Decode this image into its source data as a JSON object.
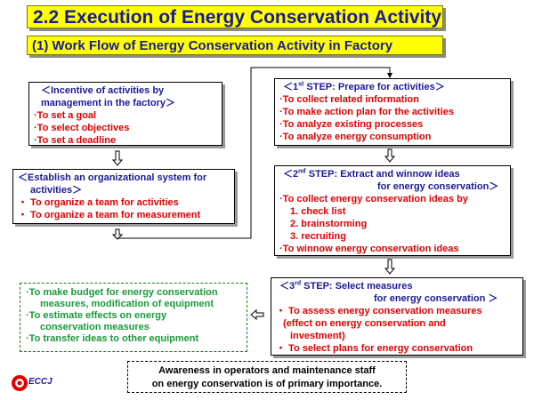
{
  "title": "2.2 Execution of Energy Conservation Activity",
  "subtitle": "(1) Work Flow of Energy Conservation Activity in Factory",
  "incentive": {
    "heading_line1": "＜Incentive of activities by",
    "heading_line2": "management in the factory＞",
    "items": [
      "·To set  a goal",
      "·To select objectives",
      "·To set a deadline"
    ]
  },
  "establish": {
    "heading_line1": "＜Establish  an organizational system for",
    "heading_line2": "activities＞",
    "items": [
      "・ To organize a team for activities",
      "・ To organize a team for measurement"
    ]
  },
  "step1": {
    "pre": "＜1",
    "sup": "st",
    "post": " STEP:  Prepare for activities＞",
    "items": [
      "·To collect related information",
      "·To make action plan for the activities",
      "·To analyze existing processes",
      "·To analyze energy consumption"
    ]
  },
  "step2": {
    "pre": "＜2",
    "sup": "nd",
    "post": " STEP:  Extract and winnow ideas",
    "line2": "for energy conservation＞",
    "item_main": "·To collect energy conservation ideas by",
    "subitems": [
      "1. check list",
      "2. brainstorming",
      "3. recruiting"
    ],
    "item_last": "·To winnow energy conservation ideas"
  },
  "step3": {
    "pre": "＜3",
    "sup": "rd",
    "post": " STEP:  Select measures",
    "line2": "for energy conservation ＞",
    "item1": "・ To assess energy conservation measures",
    "item1_cont1": "(effect on energy conservation and",
    "item1_cont2": "investment)",
    "item2": "・ To select plans for energy conservation"
  },
  "green": {
    "line1": "·To make budget for energy conservation",
    "line1b": "measures, modification of equipment",
    "line2": "·To estimate effects on energy",
    "line2b": "conservation measures",
    "line3": "·To transfer ideas to other equipment"
  },
  "note": {
    "line1": "Awareness in operators and  maintenance staff",
    "line2": "on energy conservation is of  primary  importance."
  },
  "logo": "ECCJ",
  "colors": {
    "title_bg": "#ffff00",
    "title_text": "#1a1a99",
    "red_text": "#e00000",
    "green_text": "#1a9a3a"
  }
}
